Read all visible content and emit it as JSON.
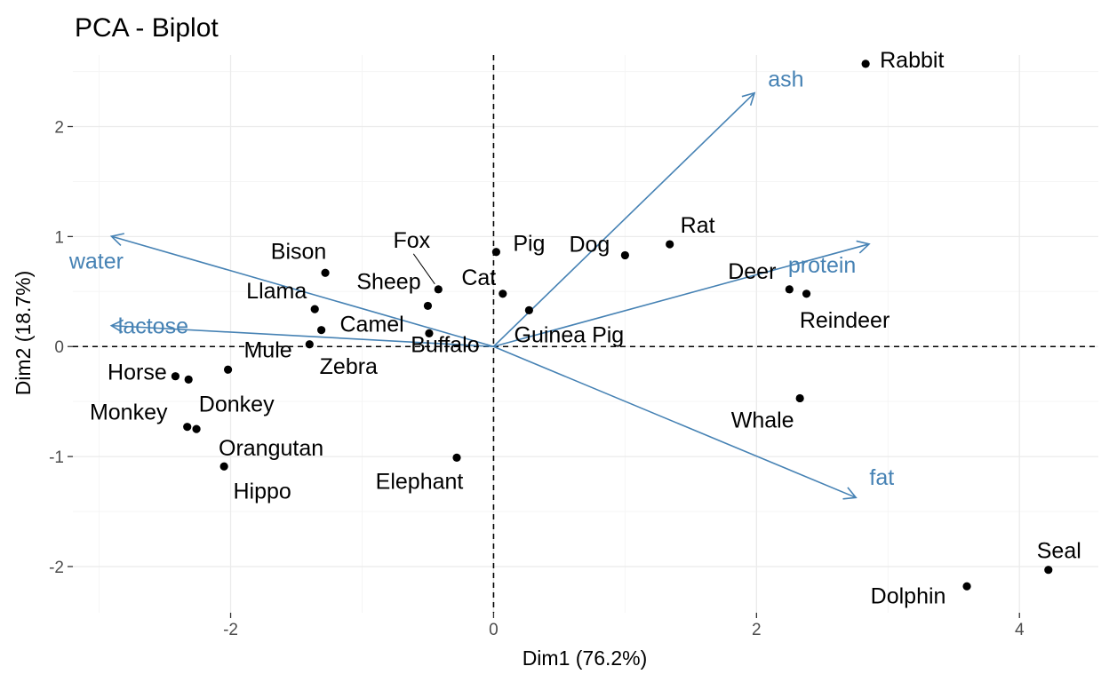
{
  "chart_data": {
    "type": "scatter",
    "title": "PCA - Biplot",
    "xlabel": "Dim1 (76.2%)",
    "ylabel": "Dim2 (18.7%)",
    "xlim": [
      -3.2,
      4.6
    ],
    "ylim": [
      -2.42,
      2.65
    ],
    "x_ticks": [
      -2,
      0,
      2,
      4
    ],
    "x_tick_labels": [
      "-2",
      "0",
      "2",
      "4"
    ],
    "y_ticks": [
      -2,
      -1,
      0,
      1,
      2
    ],
    "y_tick_labels": [
      "-2",
      "-1",
      "0",
      "1",
      "2"
    ],
    "grid": true,
    "reference_lines": {
      "x": 0,
      "y": 0,
      "style": "dashed"
    },
    "arrow_color": "#4682b4",
    "point_color": "#000000",
    "grid_major_color": "#ebebeb",
    "grid_minor_color": "#f5f5f5",
    "points": [
      {
        "name": "Rabbit",
        "x": 2.83,
        "y": 2.57
      },
      {
        "name": "Rat",
        "x": 1.34,
        "y": 0.93
      },
      {
        "name": "Dog",
        "x": 1.0,
        "y": 0.83
      },
      {
        "name": "Deer",
        "x": 2.25,
        "y": 0.52
      },
      {
        "name": "Reindeer",
        "x": 2.38,
        "y": 0.48
      },
      {
        "name": "Whale",
        "x": 2.33,
        "y": -0.47
      },
      {
        "name": "Seal",
        "x": 4.22,
        "y": -2.03
      },
      {
        "name": "Dolphin",
        "x": 3.6,
        "y": -2.18
      },
      {
        "name": "Pig",
        "x": 0.02,
        "y": 0.86
      },
      {
        "name": "Cat",
        "x": 0.07,
        "y": 0.48
      },
      {
        "name": "Guinea Pig",
        "x": 0.27,
        "y": 0.33
      },
      {
        "name": "Fox",
        "x": -0.42,
        "y": 0.52
      },
      {
        "name": "Sheep",
        "x": -0.5,
        "y": 0.37
      },
      {
        "name": "Buffalo",
        "x": -0.49,
        "y": 0.12
      },
      {
        "name": "Bison",
        "x": -1.28,
        "y": 0.67
      },
      {
        "name": "Llama",
        "x": -1.36,
        "y": 0.34
      },
      {
        "name": "Camel",
        "x": -1.31,
        "y": 0.15
      },
      {
        "name": "Zebra",
        "x": -1.4,
        "y": 0.02
      },
      {
        "name": "Mule",
        "x": -2.02,
        "y": -0.21
      },
      {
        "name": "Horse",
        "x": -2.42,
        "y": -0.27
      },
      {
        "name": "Donkey",
        "x": -2.32,
        "y": -0.3
      },
      {
        "name": "Monkey",
        "x": -2.33,
        "y": -0.73
      },
      {
        "name": "Orangutan",
        "x": -2.26,
        "y": -0.75
      },
      {
        "name": "Hippo",
        "x": -2.05,
        "y": -1.09
      },
      {
        "name": "Elephant",
        "x": -0.28,
        "y": -1.01
      }
    ],
    "variables": [
      {
        "name": "ash",
        "x": 1.98,
        "y": 2.3
      },
      {
        "name": "protein",
        "x": 2.85,
        "y": 0.93
      },
      {
        "name": "fat",
        "x": 2.75,
        "y": -1.37
      },
      {
        "name": "water",
        "x": -2.9,
        "y": 1.0
      },
      {
        "name": "lactose",
        "x": -2.9,
        "y": 0.19
      }
    ]
  }
}
